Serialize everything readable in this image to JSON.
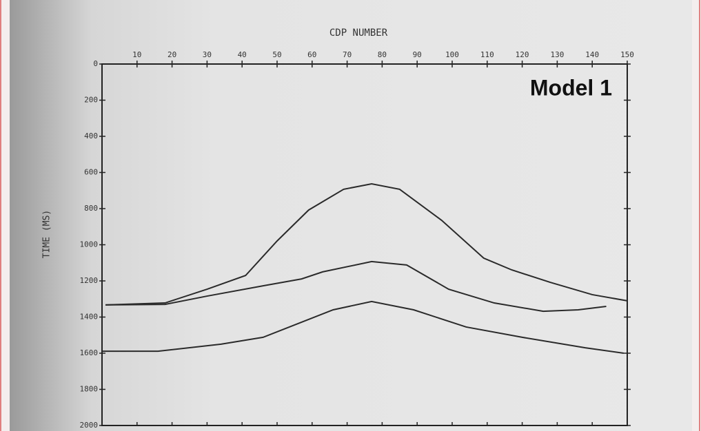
{
  "chart_data": {
    "type": "line",
    "title": "CDP NUMBER",
    "ylabel": "TIME (MS)",
    "annotation": "Model 1",
    "xlim": [
      0,
      150
    ],
    "xticks": [
      10,
      20,
      30,
      40,
      50,
      60,
      70,
      80,
      90,
      100,
      110,
      120,
      130,
      140,
      150
    ],
    "ylim": [
      0,
      2000
    ],
    "yticks": [
      0,
      200,
      400,
      600,
      800,
      1000,
      1200,
      1400,
      1600,
      1800,
      2000
    ],
    "y_inverted": true,
    "series": [
      {
        "color": "#2a2a2a",
        "x": [
          1,
          18,
          30,
          41,
          50,
          59,
          69,
          77,
          85,
          97,
          109,
          117,
          128,
          140,
          150
        ],
        "values": [
          1333,
          1322,
          1246,
          1170,
          979,
          808,
          693,
          663,
          693,
          865,
          1074,
          1139,
          1208,
          1276,
          1310
        ]
      },
      {
        "color": "#2a2a2a",
        "x": [
          1,
          18,
          30,
          46,
          57,
          63,
          77,
          87,
          99,
          112,
          126,
          136,
          144
        ],
        "values": [
          1333,
          1330,
          1284,
          1227,
          1189,
          1150,
          1093,
          1112,
          1246,
          1322,
          1368,
          1360,
          1341
        ]
      },
      {
        "color": "#2a2a2a",
        "x": [
          0,
          16,
          34,
          46,
          56,
          66,
          77,
          89,
          104,
          120,
          138,
          149
        ],
        "values": [
          1589,
          1589,
          1550,
          1512,
          1436,
          1360,
          1314,
          1360,
          1455,
          1512,
          1570,
          1600
        ]
      }
    ]
  }
}
